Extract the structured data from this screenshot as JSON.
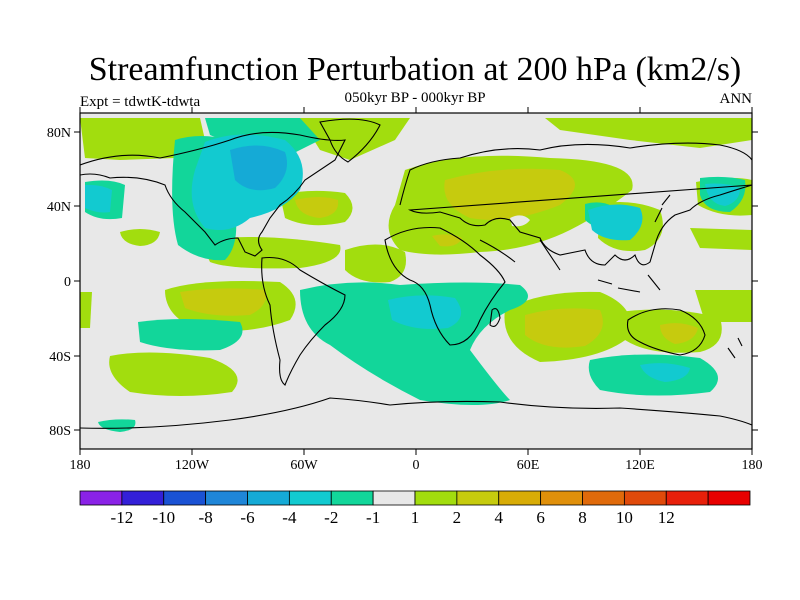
{
  "title": "Streamfunction Perturbation at 200 hPa (km2/s)",
  "subtitle": "050kyr BP - 000kyr BP",
  "left_label": "Expt = tdwtK-tdwta",
  "right_label": "ANN",
  "lon_ticks": [
    "180",
    "120W",
    "60W",
    "0",
    "60E",
    "120E",
    "180"
  ],
  "lat_ticks": [
    "80N",
    "40N",
    "0",
    "40S",
    "80S"
  ],
  "colorbar": {
    "colors": [
      "#8a22e6",
      "#3320d8",
      "#1a52d4",
      "#1f86d8",
      "#15aad6",
      "#12cad0",
      "#12d69a",
      "#e8e8e8",
      "#a2dd0e",
      "#c6cb0e",
      "#d8ac06",
      "#e0900a",
      "#e06a0a",
      "#e04a0a",
      "#e8200a",
      "#e80000"
    ],
    "labels": [
      "-12",
      "-10",
      "-8",
      "-6",
      "-4",
      "-2",
      "-1",
      "1",
      "2",
      "4",
      "6",
      "8",
      "10",
      "12"
    ]
  }
}
